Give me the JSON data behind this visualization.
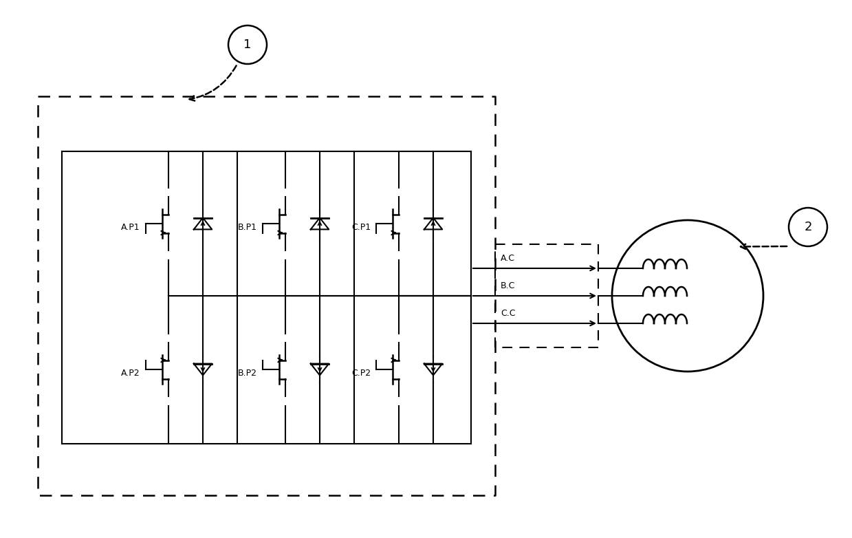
{
  "bg_color": "#ffffff",
  "line_color": "#000000",
  "fig_width": 12.39,
  "fig_height": 7.82,
  "dpi": 100,
  "phase_labels_top": [
    "A.P1",
    "B.P1",
    "C.P1"
  ],
  "phase_labels_bot": [
    "A.P2",
    "B.P2",
    "C.P2"
  ],
  "output_labels": [
    "A.C",
    "B.C",
    "C.C"
  ],
  "label1": "1",
  "label2": "2"
}
